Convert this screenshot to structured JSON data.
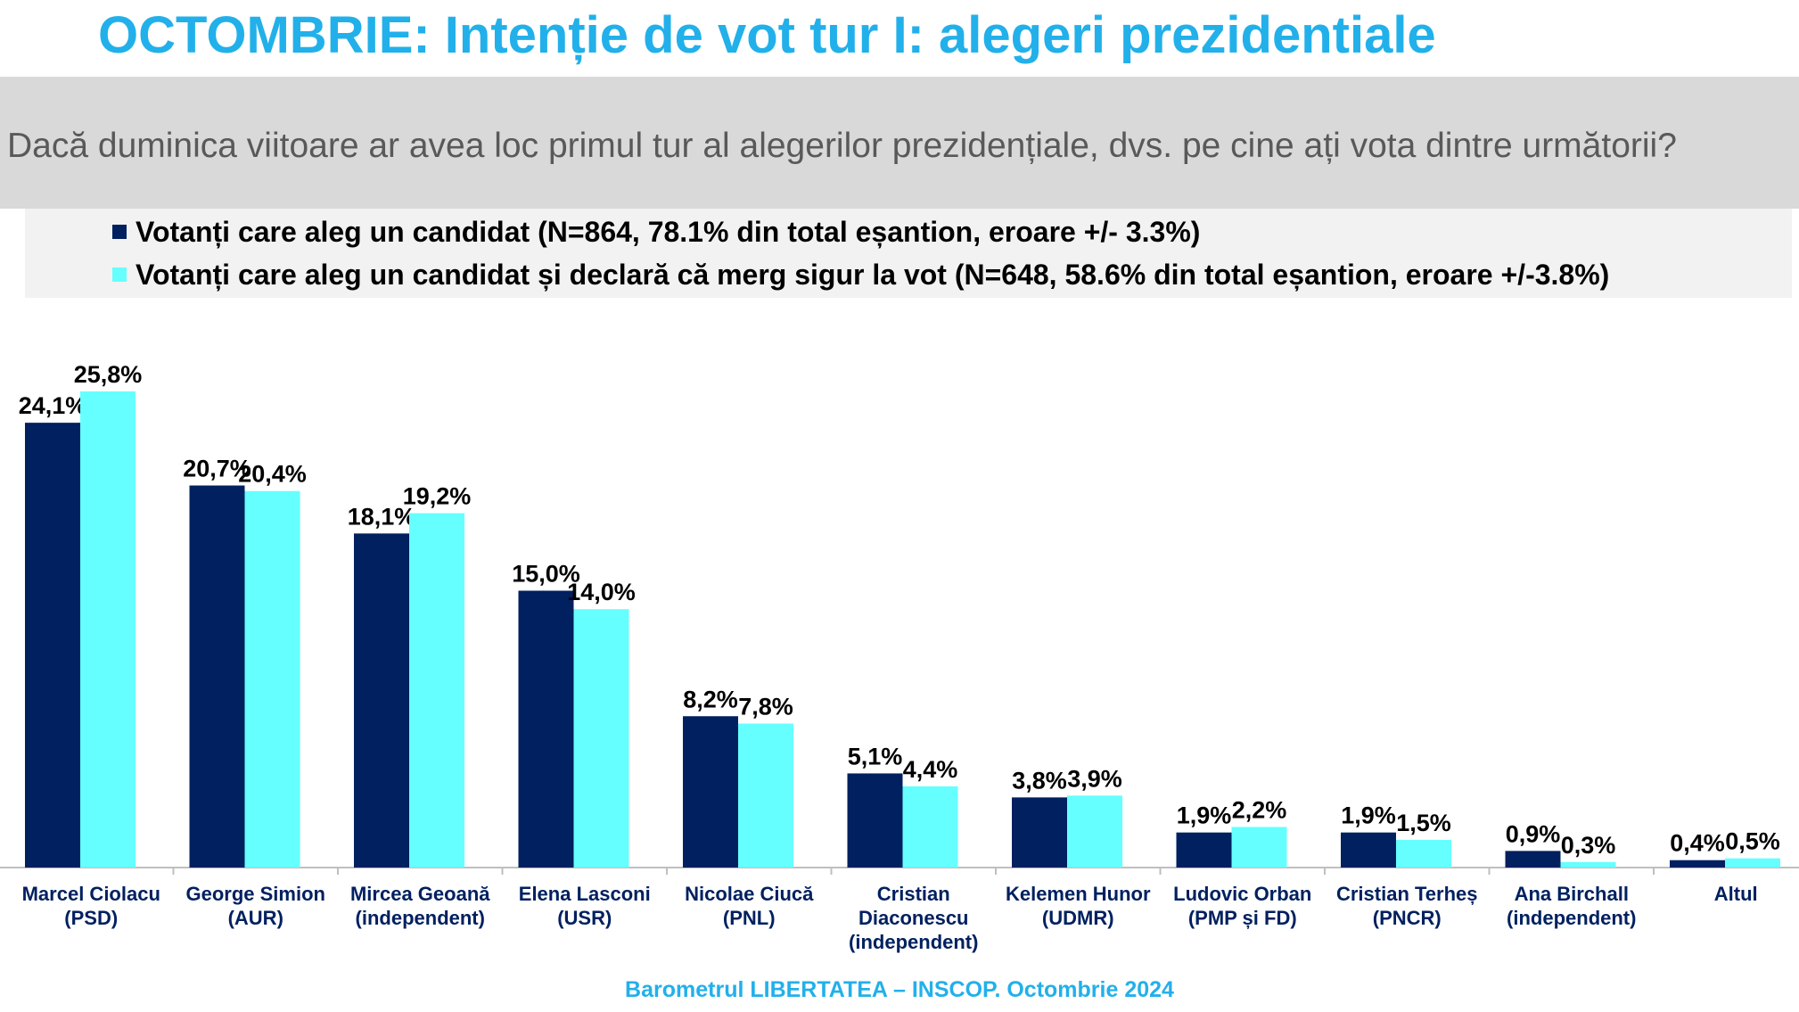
{
  "title": "OCTOMBRIE: Intenție de vot tur I: alegeri prezidentiale",
  "question": "Dacă duminica viitoare ar avea loc primul tur al alegerilor prezidențiale, dvs. pe cine ați vota dintre următorii?",
  "footer": "Barometrul LIBERTATEA – INSCOP. Octombrie 2024",
  "colors": {
    "series1": "#002060",
    "series2": "#66ffff",
    "title": "#22b0ea",
    "question_bg": "#d9d9d9",
    "legend_bg": "#f2f2f2"
  },
  "chart_data": {
    "type": "bar",
    "title": "OCTOMBRIE: Intenție de vot tur I: alegeri prezidentiale",
    "xlabel": "",
    "ylabel": "",
    "ylim": [
      0,
      26
    ],
    "grid": false,
    "legend_position": "top-left",
    "categories": [
      [
        "Marcel Ciolacu",
        "(PSD)"
      ],
      [
        "George Simion",
        "(AUR)"
      ],
      [
        "Mircea Geoană",
        "(independent)"
      ],
      [
        "Elena Lasconi",
        "(USR)"
      ],
      [
        "Nicolae Ciucă",
        "(PNL)"
      ],
      [
        "Cristian",
        "Diaconescu",
        "(independent)"
      ],
      [
        "Kelemen Hunor",
        "(UDMR)"
      ],
      [
        "Ludovic Orban",
        "(PMP și FD)"
      ],
      [
        "Cristian Terheș",
        "(PNCR)"
      ],
      [
        "Ana Birchall",
        "(independent)"
      ],
      [
        "Altul"
      ]
    ],
    "series": [
      {
        "name": "Votanți care aleg un candidat (N=864, 78.1% din total eșantion, eroare +/- 3.3%)",
        "values": [
          24.1,
          20.7,
          18.1,
          15.0,
          8.2,
          5.1,
          3.8,
          1.9,
          1.9,
          0.9,
          0.4
        ],
        "labels": [
          "24,1%",
          "20,7%",
          "18,1%",
          "15,0%",
          "8,2%",
          "5,1%",
          "3,8%",
          "1,9%",
          "1,9%",
          "0,9%",
          "0,4%"
        ]
      },
      {
        "name": "Votanți care aleg un candidat și declară că merg sigur la vot (N=648, 58.6% din total eșantion, eroare +/-3.8%)",
        "values": [
          25.8,
          20.4,
          19.2,
          14.0,
          7.8,
          4.4,
          3.9,
          2.2,
          1.5,
          0.3,
          0.5
        ],
        "labels": [
          "25,8%",
          "20,4%",
          "19,2%",
          "14,0%",
          "7,8%",
          "4,4%",
          "3,9%",
          "2,2%",
          "1,5%",
          "0,3%",
          "0,5%"
        ]
      }
    ]
  }
}
